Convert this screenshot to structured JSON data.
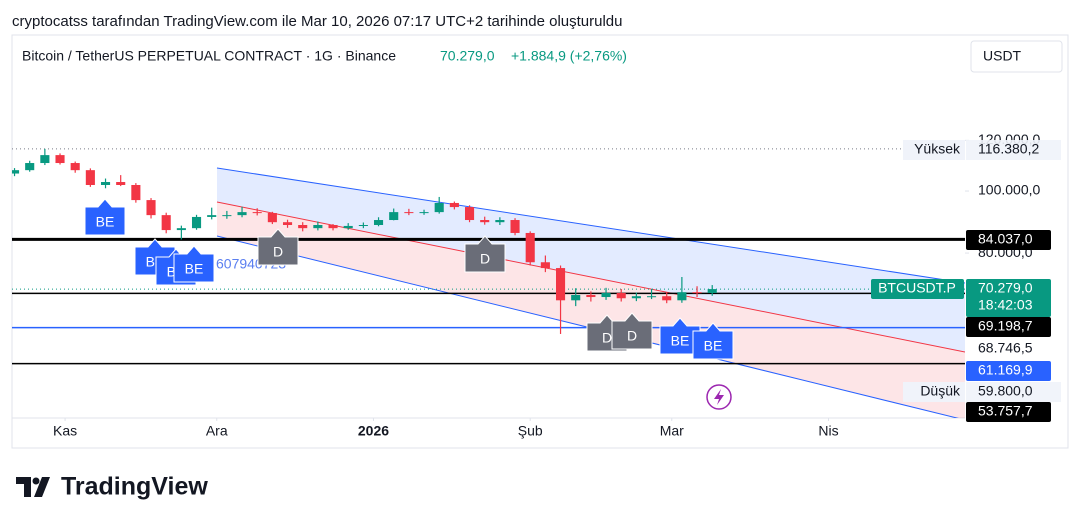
{
  "header": {
    "caption": "cryptocatss tarafından TradingView.com ile Mar 10, 2026 07:17 UTC+2 tarihinde oluşturuldu"
  },
  "footer": {
    "brand": "TradingView"
  },
  "chart_data": {
    "type": "candlestick",
    "title": "Bitcoin / TetherUS PERPETUAL CONTRACT · 1G · Binance",
    "last_price": "70.279,0",
    "change": "+1.884,9 (+2,76%)",
    "currency": "USDT",
    "log_scale": true,
    "grid": false,
    "up_color": "#089981",
    "down_color": "#f23645",
    "xlim": [
      -10.5,
      178
    ],
    "xticks": [
      {
        "value": 0,
        "label": "Kas"
      },
      {
        "value": 30,
        "label": "Ara"
      },
      {
        "value": 61,
        "label": "2026"
      },
      {
        "value": 92,
        "label": "Şub"
      },
      {
        "value": 120,
        "label": "Mar"
      },
      {
        "value": 151,
        "label": "Nis"
      }
    ],
    "ylim": [
      44200,
      175300
    ],
    "yticks": [
      {
        "value": 120000,
        "label": "120.000,0"
      },
      {
        "value": 100000,
        "label": "100.000,0"
      },
      {
        "value": 80000,
        "label": "80.000,0"
      }
    ],
    "x": [
      -10,
      -7,
      -4,
      -1,
      2,
      5,
      8,
      11,
      14,
      17,
      20,
      23,
      26,
      29,
      32,
      35,
      38,
      41,
      44,
      47,
      50,
      53,
      56,
      59,
      62,
      65,
      68,
      71,
      74,
      77,
      80,
      83,
      86,
      89,
      92,
      95,
      98,
      101,
      104,
      107,
      110,
      113,
      116,
      119,
      122,
      125,
      128
    ],
    "open": [
      106500,
      107800,
      110600,
      113800,
      110600,
      107800,
      102200,
      103300,
      102200,
      96800,
      91700,
      86900,
      87500,
      91100,
      91700,
      91700,
      92700,
      92400,
      89400,
      88500,
      87500,
      88500,
      87500,
      88200,
      88500,
      90100,
      92700,
      92400,
      92700,
      95800,
      94400,
      90100,
      89400,
      90100,
      86000,
      77400,
      75800,
      67500,
      68800,
      68300,
      69300,
      68000,
      68500,
      68500,
      67500,
      69500,
      69300
    ],
    "high": [
      108600,
      111500,
      116380,
      114500,
      111200,
      108500,
      104600,
      105900,
      102900,
      97500,
      92500,
      88300,
      91800,
      94200,
      93100,
      94500,
      94000,
      92800,
      90200,
      89400,
      89600,
      88800,
      89100,
      89300,
      91000,
      93900,
      93800,
      93500,
      97900,
      96300,
      95000,
      91200,
      91000,
      90700,
      86500,
      79300,
      76500,
      70500,
      69700,
      70600,
      70300,
      69400,
      70300,
      69500,
      73400,
      71000,
      71300
    ],
    "low": [
      105500,
      107200,
      109800,
      110000,
      106800,
      101500,
      101000,
      101800,
      95900,
      90600,
      85900,
      84000,
      87000,
      90300,
      90500,
      91000,
      91600,
      88800,
      87600,
      86500,
      86800,
      86800,
      87000,
      87500,
      88100,
      90000,
      91700,
      91800,
      92200,
      93600,
      89400,
      88600,
      88500,
      85300,
      76500,
      74700,
      59800,
      66100,
      67200,
      67600,
      67200,
      67300,
      67800,
      66800,
      66900,
      68300,
      68600
    ],
    "close": [
      107800,
      110600,
      113800,
      110600,
      107800,
      102200,
      103300,
      102200,
      96800,
      91700,
      86900,
      87500,
      91100,
      91700,
      91700,
      92700,
      92400,
      89400,
      88500,
      87500,
      88500,
      87500,
      88200,
      88500,
      90100,
      92700,
      92400,
      92700,
      95800,
      94400,
      90100,
      89400,
      90100,
      86000,
      77400,
      75800,
      67500,
      68800,
      68300,
      69300,
      68000,
      68500,
      68500,
      67500,
      69500,
      69300,
      70279
    ],
    "price_levels": [
      {
        "name": "Yüksek",
        "value": 116380.2,
        "label": "116.380,2",
        "color": "#787b86",
        "line_style": "dotted"
      },
      {
        "value": 84037.0,
        "label": "84.037,0",
        "color": "#000000",
        "line_style": "thick"
      },
      {
        "name": "BTCUSDT.P",
        "value": 70279.0,
        "label": "70.279,0",
        "countdown": "18:42:03",
        "color": "#089981",
        "line_style": "dotted"
      },
      {
        "value": 69198.7,
        "label": "69.198,7",
        "color": "#000000",
        "line_style": "solid"
      },
      {
        "value": 68746.5,
        "label": "68.746,5",
        "color": "#131722",
        "line_style": "none"
      },
      {
        "value": 61169.9,
        "label": "61.169,9",
        "color": "#2962ff",
        "line_style": "solid"
      },
      {
        "name": "Düşük",
        "value": 59800.0,
        "label": "59.800,0",
        "color": "#787b86",
        "line_style": "none"
      },
      {
        "value": 53757.7,
        "label": "53.757,7",
        "color": "#000000",
        "line_style": "solid"
      }
    ],
    "annotations": [
      "0",
      "607940723"
    ],
    "markers": [
      {
        "label": "BE",
        "color": "#2962ff"
      },
      {
        "label": "BE",
        "color": "#2962ff"
      },
      {
        "label": "BE",
        "color": "#2962ff"
      },
      {
        "label": "BE",
        "color": "#2962ff"
      },
      {
        "label": "D",
        "color": "#6a6d78"
      },
      {
        "label": "D",
        "color": "#6a6d78"
      },
      {
        "label": "D",
        "color": "#6a6d78"
      },
      {
        "label": "D",
        "color": "#6a6d78"
      },
      {
        "label": "BE",
        "color": "#2962ff"
      },
      {
        "label": "BE",
        "color": "#2962ff"
      }
    ]
  }
}
